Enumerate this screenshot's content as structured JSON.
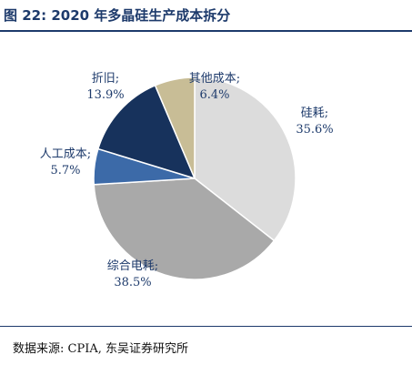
{
  "header": {
    "title": "图 22: 2020 年多晶硅生产成本拆分"
  },
  "footer": {
    "source": "数据来源: CPIA, 东吴证券研究所"
  },
  "chart_data": {
    "type": "pie",
    "title": "图 22: 2020 年多晶硅生产成本拆分",
    "start_angle_deg": 0,
    "direction": "clockwise",
    "slices": [
      {
        "name": "硅耗;",
        "value": 35.6,
        "label": "35.6%",
        "color": "#dcdcdc"
      },
      {
        "name": "综合电耗;",
        "value": 38.5,
        "label": "38.5%",
        "color": "#a9a9a9"
      },
      {
        "name": "人工成本;",
        "value": 5.7,
        "label": "5.7%",
        "color": "#3c6aa8"
      },
      {
        "name": "折旧;",
        "value": 13.9,
        "label": "13.9%",
        "color": "#17325c"
      },
      {
        "name": "其他成本;",
        "value": 6.4,
        "label": "6.4%",
        "color": "#c8bd96"
      }
    ]
  }
}
